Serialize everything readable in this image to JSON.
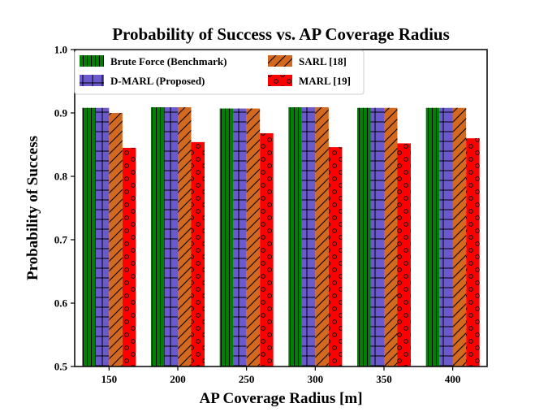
{
  "chart_data": {
    "type": "bar",
    "title": "Probability of Success vs. AP Coverage Radius",
    "xlabel": "AP Coverage Radius [m]",
    "ylabel": "Probability of Success",
    "categories": [
      "150",
      "200",
      "250",
      "300",
      "350",
      "400"
    ],
    "ylim": [
      0.5,
      1.0
    ],
    "yticks": [
      "0.5",
      "0.6",
      "0.7",
      "0.8",
      "0.9",
      "1.0"
    ],
    "legend_position": "top-left",
    "series": [
      {
        "name": "Brute Force (Benchmark)",
        "values": [
          0.908,
          0.909,
          0.907,
          0.909,
          0.908,
          0.908
        ],
        "color": "#008000",
        "hatch": "vertical"
      },
      {
        "name": "SARL [18]",
        "values": [
          0.9,
          0.909,
          0.907,
          0.909,
          0.908,
          0.908
        ],
        "color": "#d2691e",
        "hatch": "diagonal"
      },
      {
        "name": "D-MARL (Proposed)",
        "values": [
          0.908,
          0.909,
          0.907,
          0.909,
          0.908,
          0.908
        ],
        "color": "#6a5acd",
        "hatch": "grid"
      },
      {
        "name": "MARL [19]",
        "values": [
          0.845,
          0.854,
          0.868,
          0.846,
          0.852,
          0.86
        ],
        "color": "#ff0000",
        "hatch": "circles"
      }
    ],
    "bar_order": [
      0,
      2,
      1,
      3
    ]
  }
}
